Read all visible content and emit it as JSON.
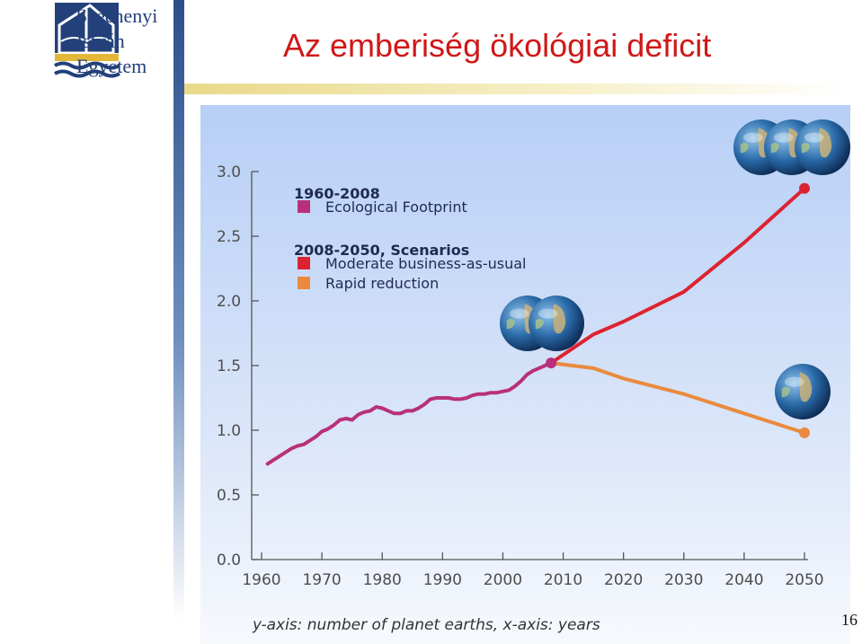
{
  "logo": {
    "lines": [
      "Széchenyi",
      "István",
      "Egyetem"
    ]
  },
  "title": "Az emberiség ökológiai deficit",
  "page_number": "16",
  "chart_data": {
    "type": "line",
    "title": "",
    "xlabel": "",
    "ylabel": "",
    "caption": "y-axis: number of planet earths, x-axis: years",
    "xlim": [
      1960,
      2050
    ],
    "ylim": [
      0,
      3.0
    ],
    "x_ticks": [
      "1960",
      "1970",
      "1980",
      "1990",
      "2000",
      "2010",
      "2020",
      "2030",
      "2040",
      "2050"
    ],
    "y_ticks": [
      "0.0",
      "0.5",
      "1.0",
      "1.5",
      "2.0",
      "2.5",
      "3.0"
    ],
    "legend": {
      "group1_title": "1960-2008",
      "group2_title": "2008-2050, Scenarios",
      "position": "top-left"
    },
    "series": [
      {
        "name": "Ecological Footprint",
        "color": "#b8307a",
        "x": [
          1961,
          1962,
          1963,
          1964,
          1965,
          1966,
          1967,
          1968,
          1969,
          1970,
          1971,
          1972,
          1973,
          1974,
          1975,
          1976,
          1977,
          1978,
          1979,
          1980,
          1981,
          1982,
          1983,
          1984,
          1985,
          1986,
          1987,
          1988,
          1989,
          1990,
          1991,
          1992,
          1993,
          1994,
          1995,
          1996,
          1997,
          1998,
          1999,
          2000,
          2001,
          2002,
          2003,
          2004,
          2005,
          2006,
          2007,
          2008
        ],
        "y": [
          0.74,
          0.77,
          0.8,
          0.83,
          0.86,
          0.88,
          0.89,
          0.92,
          0.95,
          0.99,
          1.01,
          1.04,
          1.08,
          1.09,
          1.08,
          1.12,
          1.14,
          1.15,
          1.18,
          1.17,
          1.15,
          1.13,
          1.13,
          1.15,
          1.15,
          1.17,
          1.2,
          1.24,
          1.25,
          1.25,
          1.25,
          1.24,
          1.24,
          1.25,
          1.27,
          1.28,
          1.28,
          1.29,
          1.29,
          1.3,
          1.31,
          1.34,
          1.38,
          1.43,
          1.46,
          1.48,
          1.5,
          1.52
        ]
      },
      {
        "name": "Moderate business-as-usual",
        "color": "#dd2330",
        "x": [
          2008,
          2015,
          2020,
          2030,
          2040,
          2050
        ],
        "y": [
          1.52,
          1.74,
          1.84,
          2.07,
          2.45,
          2.87
        ]
      },
      {
        "name": "Rapid reduction",
        "color": "#ea8a3e",
        "x": [
          2008,
          2015,
          2020,
          2030,
          2040,
          2050
        ],
        "y": [
          1.52,
          1.48,
          1.4,
          1.28,
          1.13,
          0.98
        ]
      }
    ],
    "markers": [
      {
        "x": 2008,
        "y": 1.52,
        "color": "#b8307a"
      },
      {
        "x": 2050,
        "y": 2.87,
        "color": "#dd2330"
      },
      {
        "x": 2050,
        "y": 0.98,
        "color": "#ea8a3e"
      }
    ],
    "earth_icons": [
      {
        "group": "top-right",
        "count": 3
      },
      {
        "group": "middle",
        "count": 2
      },
      {
        "group": "lower-right",
        "count": 1
      }
    ]
  }
}
